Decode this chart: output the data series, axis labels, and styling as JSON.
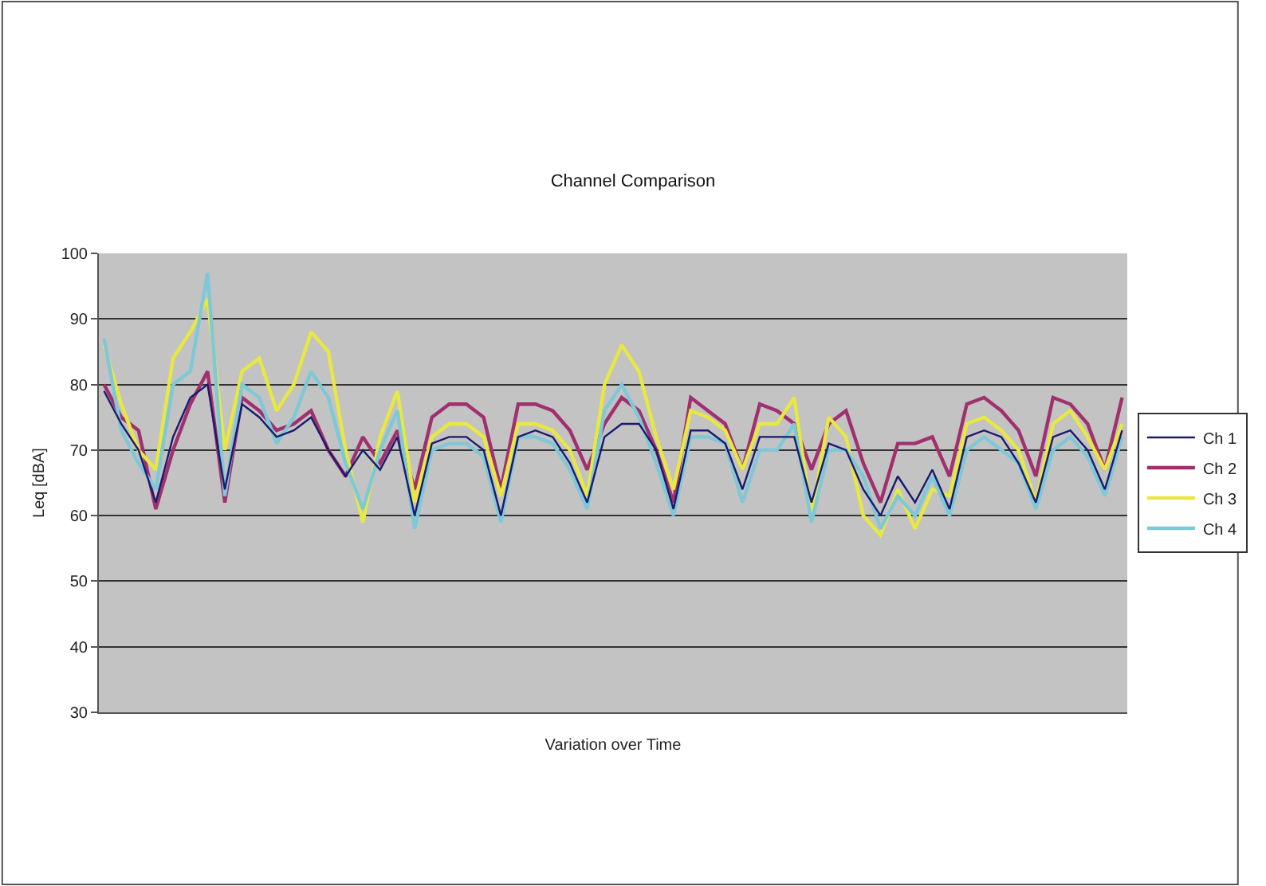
{
  "chart_data": {
    "type": "line",
    "title": "Channel Comparison",
    "xlabel": "Variation over Time",
    "ylabel": "Leq [dBA]",
    "categories": [
      null,
      null,
      null,
      null,
      null,
      null,
      null,
      null,
      null,
      null,
      null,
      null,
      null,
      null,
      null,
      null,
      null,
      null,
      null,
      null,
      null,
      null,
      null,
      null,
      null,
      null,
      null,
      null,
      null,
      null,
      null,
      null,
      null,
      null,
      null,
      null,
      null,
      null,
      null,
      null,
      null,
      null,
      null,
      null,
      null,
      null,
      null,
      null,
      null,
      null,
      null,
      null,
      null,
      null,
      null,
      null,
      null,
      null,
      null,
      null
    ],
    "ylim": [
      30,
      100
    ],
    "yticks": [
      30,
      40,
      50,
      60,
      70,
      80,
      90,
      100
    ],
    "grid": "y",
    "legend": "right",
    "marker": "none",
    "line_style": "solid",
    "series": [
      {
        "name": "Ch 1",
        "color": "#1a1a6e",
        "values": [
          79,
          74,
          70,
          62,
          72,
          78,
          80,
          64,
          77,
          75,
          72,
          73,
          75,
          70,
          66,
          70,
          67,
          72,
          60,
          71,
          72,
          72,
          70,
          60,
          72,
          73,
          72,
          68,
          62,
          72,
          74,
          74,
          70,
          61,
          73,
          73,
          71,
          64,
          72,
          72,
          72,
          62,
          71,
          70,
          64,
          60,
          66,
          62,
          67,
          61,
          72,
          73,
          72,
          68,
          62,
          72,
          73,
          70,
          64,
          73
        ]
      },
      {
        "name": "Ch 2",
        "color": "#a0306e",
        "values": [
          80,
          75,
          73,
          61,
          70,
          77,
          82,
          62,
          78,
          76,
          73,
          74,
          76,
          70,
          66,
          72,
          68,
          73,
          64,
          75,
          77,
          77,
          75,
          64,
          77,
          77,
          76,
          73,
          67,
          74,
          78,
          76,
          70,
          62,
          78,
          76,
          74,
          67,
          77,
          76,
          74,
          67,
          74,
          76,
          68,
          62,
          71,
          71,
          72,
          66,
          77,
          78,
          76,
          73,
          66,
          78,
          77,
          74,
          67,
          78
        ]
      },
      {
        "name": "Ch 3",
        "color": "#e8e840",
        "values": [
          86,
          77,
          70,
          67,
          84,
          88,
          93,
          70,
          82,
          84,
          76,
          80,
          88,
          85,
          70,
          59,
          72,
          79,
          62,
          72,
          74,
          74,
          72,
          63,
          74,
          74,
          73,
          70,
          63,
          80,
          86,
          82,
          72,
          64,
          76,
          75,
          73,
          67,
          74,
          74,
          78,
          60,
          75,
          72,
          60,
          57,
          64,
          58,
          64,
          63,
          74,
          75,
          73,
          70,
          62,
          74,
          76,
          72,
          67,
          74
        ]
      },
      {
        "name": "Ch 4",
        "color": "#7ec8d8",
        "values": [
          87,
          73,
          68,
          64,
          80,
          82,
          97,
          63,
          80,
          78,
          71,
          75,
          82,
          78,
          68,
          61,
          70,
          76,
          58,
          70,
          71,
          71,
          69,
          59,
          72,
          72,
          71,
          67,
          61,
          76,
          80,
          75,
          68,
          60,
          72,
          72,
          71,
          62,
          70,
          70,
          74,
          59,
          70,
          70,
          66,
          58,
          63,
          60,
          66,
          60,
          70,
          72,
          70,
          68,
          61,
          70,
          72,
          69,
          63,
          72
        ]
      }
    ]
  }
}
